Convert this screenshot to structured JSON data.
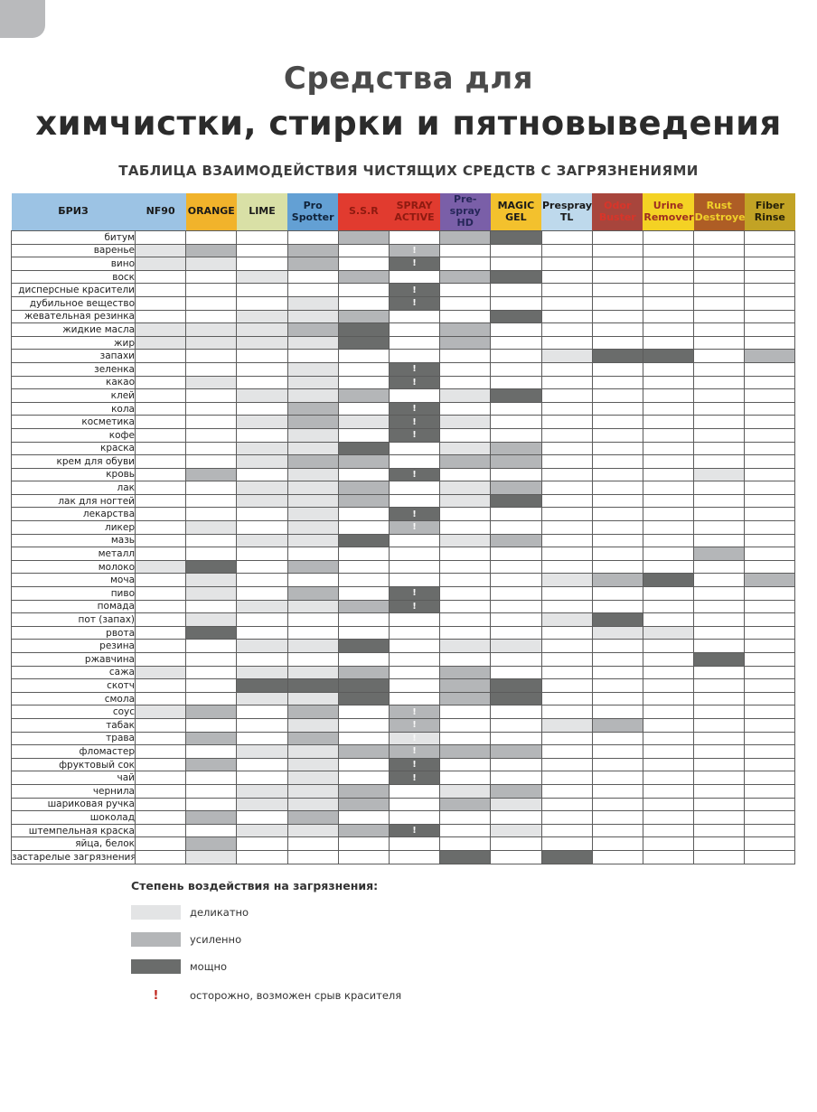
{
  "page": {
    "title_line1": "Средства для",
    "title_line2": "химчистки, стирки и пятновыведения",
    "subtitle": "ТАБЛИЦА ВЗАИМОДЕЙСТВИЯ ЧИСТЯЩИХ СРЕДСТВ С ЗАГРЯЗНЕНИЯМИ"
  },
  "chart_data": {
    "type": "table",
    "title": "ТАБЛИЦА ВЗАИМОДЕЙСТВИЯ ЧИСТЯЩИХ СРЕДСТВ С ЗАГРЯЗНЕНИЯМИ",
    "value_legend": "0=нет, 1=деликатно, 2=усиленно, 3=мощно, !=осторожно, возможен срыв красителя",
    "row_header": {
      "label": "БРИЗ",
      "bg": "#9cc3e4",
      "fg": "#1a1a1a"
    },
    "columns": [
      {
        "label": "NF90",
        "bg": "#9cc3e4",
        "fg": "#1a1a1a"
      },
      {
        "label": "ORANGE",
        "bg": "#f1b32b",
        "fg": "#1a1a1a"
      },
      {
        "label": "LIME",
        "bg": "#d9e0a6",
        "fg": "#1a1a1a"
      },
      {
        "label": "Pro Spotter",
        "bg": "#63a0d4",
        "fg": "#10233a"
      },
      {
        "label": "S.S.R",
        "bg": "#e13b2f",
        "fg": "#8e1a10"
      },
      {
        "label": "SPRAY ACTIVE",
        "bg": "#e13b2f",
        "fg": "#8e1a10"
      },
      {
        "label": "Pre-spray HD",
        "bg": "#7a5fa8",
        "fg": "#27275a"
      },
      {
        "label": "MAGIC GEL",
        "bg": "#f3c12d",
        "fg": "#1a1a1a"
      },
      {
        "label": "Prespray TL",
        "bg": "#bed9ec",
        "fg": "#1a1a1a"
      },
      {
        "label": "Odor Buster",
        "bg": "#a8453c",
        "fg": "#d8352a"
      },
      {
        "label": "Urine Remover",
        "bg": "#f4d224",
        "fg": "#9e2d20"
      },
      {
        "label": "Rust Destroyer",
        "bg": "#ae5d25",
        "fg": "#f0d02a"
      },
      {
        "label": "Fiber Rinse",
        "bg": "#c2a325",
        "fg": "#262008"
      }
    ],
    "intensity_colors": {
      "1": "#e3e4e5",
      "2": "#b4b6b8",
      "3": "#6a6c6b"
    },
    "rows": [
      {
        "label": "битум",
        "cells": [
          "",
          "",
          "",
          "",
          "2",
          "",
          "2",
          "3",
          "",
          "",
          "",
          "",
          ""
        ]
      },
      {
        "label": "варенье",
        "cells": [
          "1",
          "2",
          "",
          "2",
          "",
          "2!",
          "",
          "",
          "",
          "",
          "",
          "",
          ""
        ]
      },
      {
        "label": "вино",
        "cells": [
          "1",
          "1",
          "",
          "2",
          "",
          "3!",
          "",
          "",
          "",
          "",
          "",
          "",
          ""
        ]
      },
      {
        "label": "воск",
        "cells": [
          "",
          "",
          "1",
          "",
          "2",
          "",
          "2",
          "3",
          "",
          "",
          "",
          "",
          ""
        ]
      },
      {
        "label": "дисперсные красители",
        "cells": [
          "",
          "",
          "",
          "",
          "",
          "3!",
          "",
          "",
          "",
          "",
          "",
          "",
          ""
        ]
      },
      {
        "label": "дубильное вещество",
        "cells": [
          "",
          "",
          "",
          "1",
          "",
          "3!",
          "",
          "",
          "",
          "",
          "",
          "",
          ""
        ]
      },
      {
        "label": "жевательная резинка",
        "cells": [
          "",
          "",
          "1",
          "1",
          "2",
          "",
          "",
          "3",
          "",
          "",
          "",
          "",
          ""
        ]
      },
      {
        "label": "жидкие масла",
        "cells": [
          "1",
          "1",
          "1",
          "2",
          "3",
          "",
          "2",
          "",
          "",
          "",
          "",
          "",
          ""
        ]
      },
      {
        "label": "жир",
        "cells": [
          "1",
          "1",
          "1",
          "1",
          "3",
          "",
          "2",
          "",
          "",
          "",
          "",
          "",
          ""
        ]
      },
      {
        "label": "запахи",
        "cells": [
          "",
          "",
          "",
          "",
          "",
          "",
          "",
          "",
          "1",
          "3",
          "3",
          "",
          "2"
        ]
      },
      {
        "label": "зеленка",
        "cells": [
          "",
          "",
          "",
          "1",
          "",
          "3!",
          "",
          "",
          "",
          "",
          "",
          "",
          ""
        ]
      },
      {
        "label": "какао",
        "cells": [
          "",
          "1",
          "",
          "1",
          "",
          "3!",
          "",
          "",
          "",
          "",
          "",
          "",
          ""
        ]
      },
      {
        "label": "клей",
        "cells": [
          "",
          "",
          "1",
          "1",
          "2",
          "",
          "1",
          "3",
          "",
          "",
          "",
          "",
          ""
        ]
      },
      {
        "label": "кола",
        "cells": [
          "",
          "",
          "",
          "2",
          "",
          "3!",
          "",
          "",
          "",
          "",
          "",
          "",
          ""
        ]
      },
      {
        "label": "косметика",
        "cells": [
          "",
          "",
          "1",
          "2",
          "1",
          "3!",
          "1",
          "",
          "",
          "",
          "",
          "",
          ""
        ]
      },
      {
        "label": "кофе",
        "cells": [
          "",
          "",
          "",
          "1",
          "",
          "3!",
          "",
          "",
          "",
          "",
          "",
          "",
          ""
        ]
      },
      {
        "label": "краска",
        "cells": [
          "",
          "",
          "1",
          "1",
          "3",
          "",
          "1",
          "2",
          "",
          "",
          "",
          "",
          ""
        ]
      },
      {
        "label": "крем для обуви",
        "cells": [
          "",
          "",
          "1",
          "2",
          "2",
          "",
          "2",
          "2",
          "",
          "",
          "",
          "",
          ""
        ]
      },
      {
        "label": "кровь",
        "cells": [
          "",
          "2",
          "",
          "1",
          "",
          "3!",
          "",
          "",
          "",
          "",
          "",
          "1",
          ""
        ]
      },
      {
        "label": "лак",
        "cells": [
          "",
          "",
          "1",
          "1",
          "2",
          "",
          "1",
          "2",
          "",
          "",
          "",
          "",
          ""
        ]
      },
      {
        "label": "лак для ногтей",
        "cells": [
          "",
          "",
          "1",
          "1",
          "2",
          "",
          "1",
          "3",
          "",
          "",
          "",
          "",
          ""
        ]
      },
      {
        "label": "лекарства",
        "cells": [
          "",
          "",
          "",
          "1",
          "",
          "3!",
          "",
          "",
          "",
          "",
          "",
          "",
          ""
        ]
      },
      {
        "label": "ликер",
        "cells": [
          "",
          "1",
          "",
          "1",
          "",
          "2!",
          "",
          "",
          "",
          "",
          "",
          "",
          ""
        ]
      },
      {
        "label": "мазь",
        "cells": [
          "",
          "",
          "1",
          "1",
          "3",
          "",
          "1",
          "2",
          "",
          "",
          "",
          "",
          ""
        ]
      },
      {
        "label": "металл",
        "cells": [
          "",
          "",
          "",
          "",
          "",
          "",
          "",
          "",
          "",
          "",
          "",
          "2",
          ""
        ]
      },
      {
        "label": "молоко",
        "cells": [
          "1",
          "3",
          "",
          "2",
          "",
          "",
          "",
          "",
          "",
          "",
          "",
          "",
          ""
        ]
      },
      {
        "label": "моча",
        "cells": [
          "",
          "1",
          "",
          "",
          "",
          "",
          "",
          "",
          "1",
          "2",
          "3",
          "",
          "2"
        ]
      },
      {
        "label": "пиво",
        "cells": [
          "",
          "1",
          "",
          "2",
          "",
          "3!",
          "",
          "",
          "",
          "",
          "",
          "",
          ""
        ]
      },
      {
        "label": "помада",
        "cells": [
          "",
          "",
          "1",
          "1",
          "2",
          "3!",
          "",
          "",
          "",
          "",
          "",
          "",
          ""
        ]
      },
      {
        "label": "пот (запах)",
        "cells": [
          "",
          "1",
          "",
          "",
          "",
          "",
          "",
          "",
          "1",
          "3",
          "",
          "",
          ""
        ]
      },
      {
        "label": "рвота",
        "cells": [
          "",
          "3",
          "",
          "",
          "",
          "",
          "",
          "",
          "",
          "1",
          "1",
          "",
          ""
        ]
      },
      {
        "label": "резина",
        "cells": [
          "",
          "",
          "1",
          "1",
          "3",
          "",
          "1",
          "1",
          "",
          "",
          "",
          "",
          ""
        ]
      },
      {
        "label": "ржавчина",
        "cells": [
          "",
          "",
          "",
          "",
          "",
          "",
          "",
          "",
          "",
          "",
          "",
          "3",
          ""
        ]
      },
      {
        "label": "сажа",
        "cells": [
          "1",
          "",
          "1",
          "1",
          "2",
          "",
          "2",
          "",
          "",
          "",
          "",
          "",
          ""
        ]
      },
      {
        "label": "скотч",
        "cells": [
          "",
          "",
          "3",
          "3",
          "3",
          "",
          "2",
          "3",
          "",
          "",
          "",
          "",
          ""
        ]
      },
      {
        "label": "смола",
        "cells": [
          "",
          "",
          "1",
          "1",
          "3",
          "",
          "2",
          "3",
          "",
          "",
          "",
          "",
          ""
        ]
      },
      {
        "label": "соус",
        "cells": [
          "1",
          "2",
          "",
          "2",
          "",
          "2!",
          "",
          "",
          "",
          "",
          "",
          "",
          ""
        ]
      },
      {
        "label": "табак",
        "cells": [
          "",
          "",
          "",
          "1",
          "",
          "2!",
          "",
          "",
          "1",
          "2",
          "",
          "",
          ""
        ]
      },
      {
        "label": "трава",
        "cells": [
          "",
          "2",
          "",
          "2",
          "",
          "1!",
          "",
          "",
          "",
          "",
          "",
          "",
          ""
        ]
      },
      {
        "label": "фломастер",
        "cells": [
          "",
          "",
          "1",
          "1",
          "2",
          "2!",
          "2",
          "2",
          "",
          "",
          "",
          "",
          ""
        ]
      },
      {
        "label": "фруктовый сок",
        "cells": [
          "",
          "2",
          "",
          "1",
          "",
          "3!",
          "",
          "",
          "",
          "",
          "",
          "",
          ""
        ]
      },
      {
        "label": "чай",
        "cells": [
          "",
          "",
          "",
          "1",
          "",
          "3!",
          "",
          "",
          "",
          "",
          "",
          "",
          ""
        ]
      },
      {
        "label": "чернила",
        "cells": [
          "",
          "",
          "1",
          "1",
          "2",
          "",
          "1",
          "2",
          "",
          "",
          "",
          "",
          ""
        ]
      },
      {
        "label": "шариковая ручка",
        "cells": [
          "",
          "",
          "1",
          "1",
          "2",
          "",
          "2",
          "1",
          "",
          "",
          "",
          "",
          ""
        ]
      },
      {
        "label": "шоколад",
        "cells": [
          "",
          "2",
          "",
          "2",
          "",
          "",
          "",
          "",
          "",
          "",
          "",
          "",
          ""
        ]
      },
      {
        "label": "штемпельная краска",
        "cells": [
          "",
          "",
          "1",
          "1",
          "2",
          "3!",
          "",
          "1",
          "",
          "",
          "",
          "",
          ""
        ]
      },
      {
        "label": "яйца, белок",
        "cells": [
          "",
          "2",
          "",
          "",
          "",
          "",
          "",
          "",
          "",
          "",
          "",
          "",
          ""
        ]
      },
      {
        "label": "застарелые загрязнения",
        "cells": [
          "",
          "1",
          "",
          "",
          "",
          "",
          "3",
          "",
          "3",
          "",
          "",
          "",
          ""
        ]
      }
    ]
  },
  "legend": {
    "heading": "Степень воздействия на загрязнения:",
    "items": [
      {
        "level": "1",
        "label": "деликатно"
      },
      {
        "level": "2",
        "label": "усиленно"
      },
      {
        "level": "3",
        "label": "мощно"
      }
    ],
    "warning_symbol": "!",
    "warning_label": "осторожно, возможен срыв красителя",
    "warning_color": "#c0251c"
  }
}
